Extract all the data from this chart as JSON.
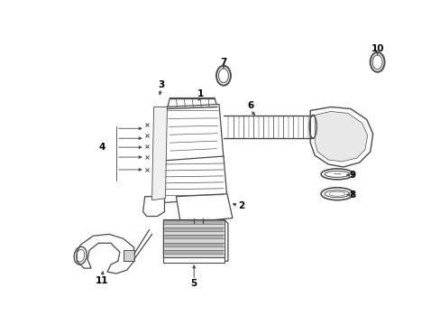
{
  "background_color": "#ffffff",
  "line_color": "#4a4a4a",
  "label_color": "#000000",
  "fig_w": 4.89,
  "fig_h": 3.6,
  "dpi": 100
}
